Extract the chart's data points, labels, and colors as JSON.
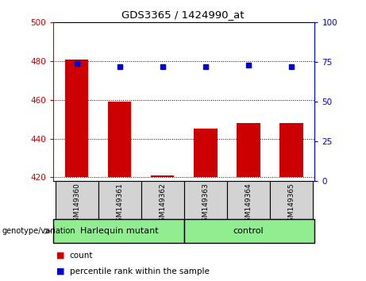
{
  "title": "GDS3365 / 1424990_at",
  "samples": [
    "GSM149360",
    "GSM149361",
    "GSM149362",
    "GSM149363",
    "GSM149364",
    "GSM149365"
  ],
  "bar_values": [
    481,
    459,
    421,
    445,
    448,
    448
  ],
  "percentile_values": [
    74,
    72,
    72,
    72,
    73,
    72
  ],
  "ylim_left": [
    418,
    500
  ],
  "ylim_right": [
    0,
    100
  ],
  "yticks_left": [
    420,
    440,
    460,
    480,
    500
  ],
  "yticks_right": [
    0,
    25,
    50,
    75,
    100
  ],
  "bar_color": "#cc0000",
  "dot_color": "#0000cc",
  "bar_bottom": 420,
  "left_axis_color": "#cc0000",
  "right_axis_color": "#0000cc",
  "group_label": "genotype/variation",
  "harlequin_label": "Harlequin mutant",
  "control_label": "control",
  "legend_count_label": "count",
  "legend_pct_label": "percentile rank within the sample",
  "group_bg": "#90ee90",
  "sample_bg": "#d3d3d3"
}
